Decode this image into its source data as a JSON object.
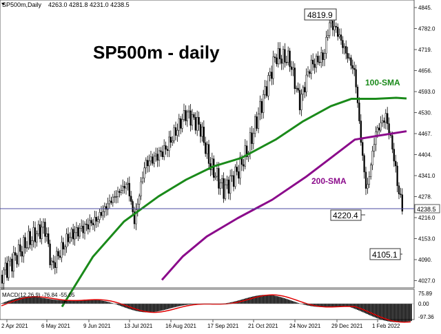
{
  "window": {
    "symbol_line": "SP500m,Daily",
    "ohlc_values": "4263.0 4281.8 4231.0 4238.5",
    "indicator_label": "MACD(12,26,9) -76.84 -55.05"
  },
  "chart_data": {
    "type": "candlestick",
    "title": "SP500m - daily",
    "y_ticks": [
      "4845.",
      "4782.0",
      "4719.",
      "4656.",
      "4593.0",
      "4530.",
      "4467.",
      "4404.",
      "4341.0",
      "4278.",
      "4216.0",
      "4153.0",
      "4090.",
      "4027.0"
    ],
    "x_ticks": [
      "2 Apr 2021",
      "6 May 2021",
      "9 Jun 2021",
      "13 Jul 2021",
      "16 Aug 2021",
      "17 Sep 2021",
      "21 Oct 2021",
      "24 Nov 2021",
      "29 Dec 2021",
      "1 Feb 2022"
    ],
    "current_price": "4238.5",
    "annotations": [
      "4819.9",
      "4220.4",
      "4105.1"
    ],
    "series": [
      {
        "name": "100-SMA",
        "color": "#1a8a1a",
        "values": [
          [
            90,
            3950
          ],
          [
            135,
            4100
          ],
          [
            180,
            4205
          ],
          [
            230,
            4280
          ],
          [
            270,
            4330
          ],
          [
            310,
            4370
          ],
          [
            350,
            4395
          ],
          [
            400,
            4450
          ],
          [
            440,
            4505
          ],
          [
            480,
            4550
          ],
          [
            510,
            4572
          ],
          [
            545,
            4572
          ],
          [
            575,
            4575
          ],
          [
            590,
            4573
          ]
        ]
      },
      {
        "name": "200-SMA",
        "color": "#8b0a8b",
        "values": [
          [
            235,
            4030
          ],
          [
            265,
            4100
          ],
          [
            300,
            4160
          ],
          [
            345,
            4215
          ],
          [
            395,
            4270
          ],
          [
            445,
            4340
          ],
          [
            480,
            4395
          ],
          [
            515,
            4450
          ],
          [
            550,
            4462
          ],
          [
            590,
            4475
          ]
        ]
      }
    ],
    "macd_ticks": [
      "75.89",
      "0.00",
      "-97.36"
    ],
    "macd_signal_color": "#e00000"
  }
}
